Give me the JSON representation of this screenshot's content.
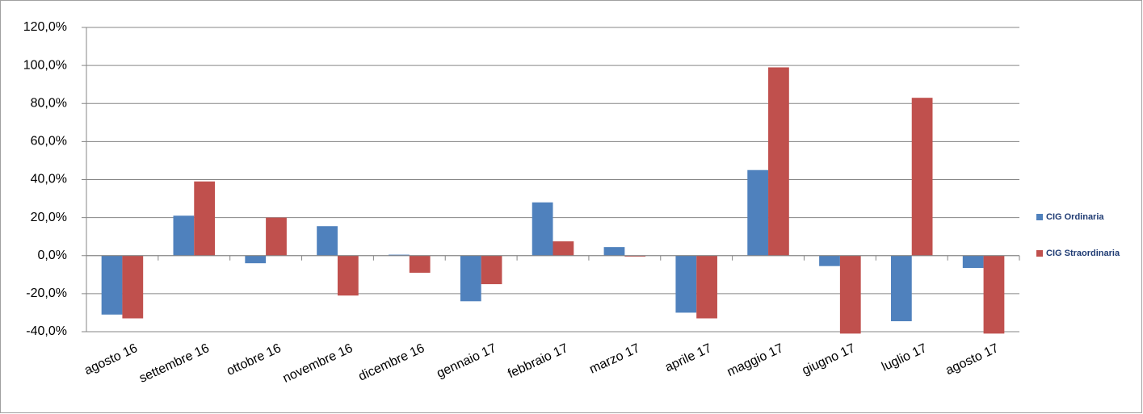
{
  "chart_data": {
    "type": "bar",
    "categories": [
      "agosto 16",
      "settembre 16",
      "ottobre 16",
      "novembre 16",
      "dicembre 16",
      "gennaio 17",
      "febbraio 17",
      "marzo 17",
      "aprile 17",
      "maggio 17",
      "giugno 17",
      "luglio 17",
      "agosto 17"
    ],
    "series": [
      {
        "name": "CIG Ordinaria",
        "color": "#4f81bd",
        "values": [
          -31,
          21,
          -4,
          15.5,
          0.5,
          -24,
          28,
          4.5,
          -30,
          45,
          -5.5,
          -34.5,
          -6.5
        ]
      },
      {
        "name": "CIG Straordinaria",
        "color": "#c0504d",
        "values": [
          -33,
          39,
          20,
          -21,
          -9,
          -15,
          7.5,
          -0.5,
          -33,
          99,
          -41,
          83,
          -41
        ]
      }
    ],
    "ylim": [
      -40,
      120
    ],
    "yticks": [
      {
        "value": -40,
        "label": "-40,0%"
      },
      {
        "value": -20,
        "label": "-20,0%"
      },
      {
        "value": 0,
        "label": "0,0%"
      },
      {
        "value": 20,
        "label": "20,0%"
      },
      {
        "value": 40,
        "label": "40,0%"
      },
      {
        "value": 60,
        "label": "60,0%"
      },
      {
        "value": 80,
        "label": "80,0%"
      },
      {
        "value": 100,
        "label": "100,0%"
      },
      {
        "value": 120,
        "label": "120,0%"
      }
    ],
    "grid": true,
    "legend": "right"
  }
}
